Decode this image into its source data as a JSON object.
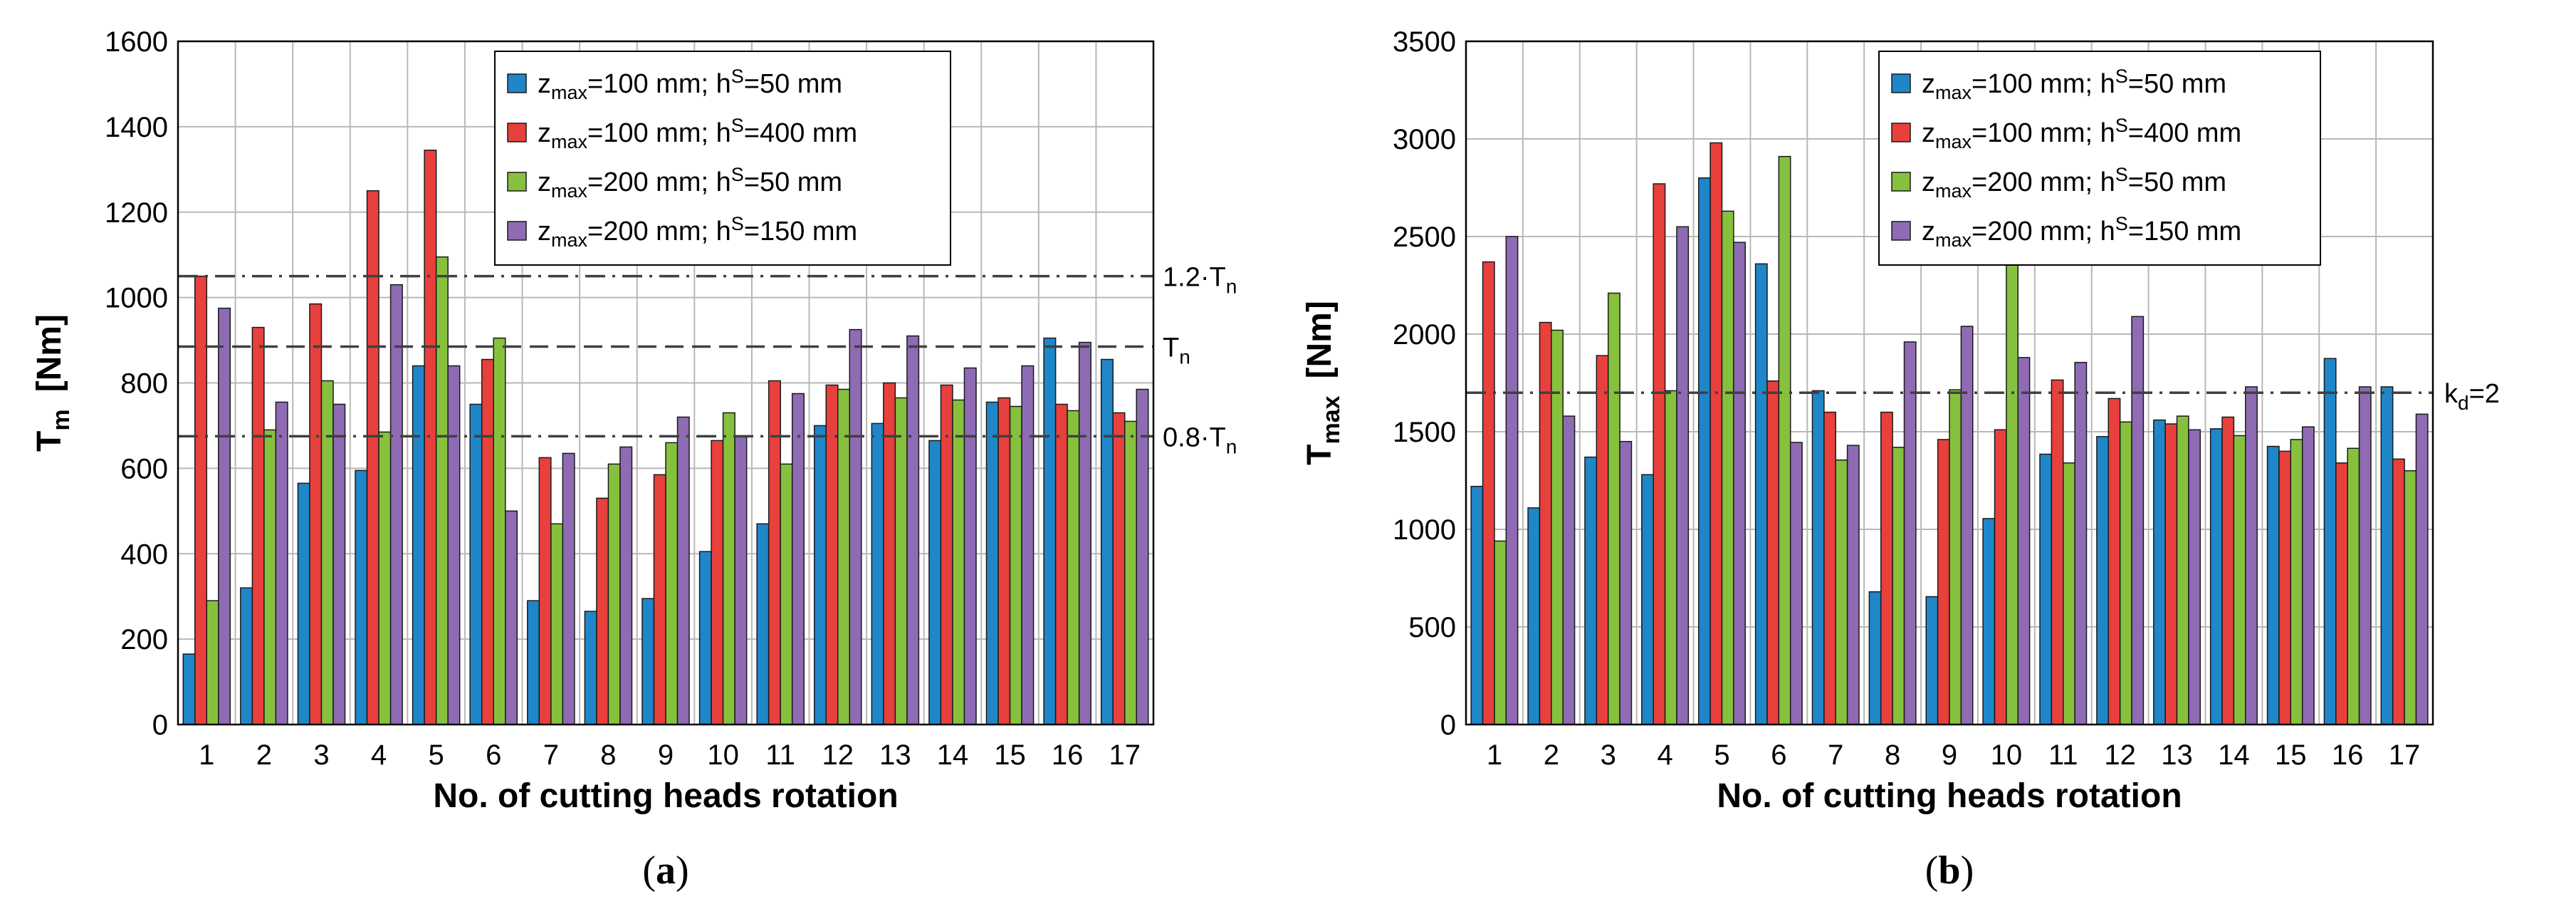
{
  "chart_data": [
    {
      "type": "bar",
      "panel": "a",
      "caption_letter": "a",
      "ylabel_main": "T",
      "ylabel_sub": "m",
      "ylabel_unit": "[Nm]",
      "xlabel": "No. of cutting heads rotation",
      "ylim": [
        0,
        1600
      ],
      "yticks": [
        0,
        200,
        400,
        600,
        800,
        1000,
        1200,
        1400,
        1600
      ],
      "categories": [
        "1",
        "2",
        "3",
        "4",
        "5",
        "6",
        "7",
        "8",
        "9",
        "10",
        "11",
        "12",
        "13",
        "14",
        "15",
        "16",
        "17"
      ],
      "legend_position": "top-right",
      "series": [
        {
          "name": "zmax=100 mm; hS=50 mm",
          "values": [
            165,
            320,
            565,
            595,
            840,
            750,
            290,
            265,
            295,
            405,
            470,
            700,
            705,
            665,
            755,
            905,
            855
          ]
        },
        {
          "name": "zmax=100 mm; hS=400 mm",
          "values": [
            1050,
            930,
            985,
            1250,
            1345,
            855,
            625,
            530,
            585,
            665,
            805,
            795,
            800,
            795,
            765,
            750,
            730
          ]
        },
        {
          "name": "zmax=200 mm; hS=50 mm",
          "values": [
            290,
            690,
            805,
            685,
            1095,
            905,
            470,
            610,
            660,
            730,
            610,
            785,
            765,
            760,
            745,
            735,
            710
          ]
        },
        {
          "name": "zmax=200 mm; hS=150 mm",
          "values": [
            975,
            755,
            750,
            1030,
            840,
            500,
            635,
            650,
            720,
            675,
            775,
            925,
            910,
            835,
            840,
            895,
            785
          ]
        }
      ],
      "reference_lines": [
        {
          "value": 1050,
          "style": "dash-dot",
          "label_main": "1.2·T",
          "label_sub": "n"
        },
        {
          "value": 885,
          "style": "dash",
          "label_main": "T",
          "label_sub": "n"
        },
        {
          "value": 675,
          "style": "dash-dot",
          "label_main": "0.8·T",
          "label_sub": "n"
        }
      ]
    },
    {
      "type": "bar",
      "panel": "b",
      "caption_letter": "b",
      "ylabel_main": "T",
      "ylabel_sub": "max",
      "ylabel_unit": "[Nm]",
      "xlabel": "No. of cutting heads rotation",
      "ylim": [
        0,
        3500
      ],
      "yticks": [
        0,
        500,
        1000,
        1500,
        2000,
        2500,
        3000,
        3500
      ],
      "categories": [
        "1",
        "2",
        "3",
        "4",
        "5",
        "6",
        "7",
        "8",
        "9",
        "10",
        "11",
        "12",
        "13",
        "14",
        "15",
        "16",
        "17"
      ],
      "legend_position": "top-right",
      "series": [
        {
          "name": "zmax=100 mm; hS=50 mm",
          "values": [
            1220,
            1110,
            1370,
            1280,
            2800,
            2360,
            1710,
            680,
            655,
            1055,
            1385,
            1475,
            1560,
            1515,
            1425,
            1875,
            1730
          ]
        },
        {
          "name": "zmax=100 mm; hS=400 mm",
          "values": [
            2370,
            2060,
            1890,
            2770,
            2980,
            1760,
            1600,
            1600,
            1460,
            1510,
            1765,
            1670,
            1540,
            1575,
            1400,
            1340,
            1360
          ]
        },
        {
          "name": "zmax=200 mm; hS=50 mm",
          "values": [
            940,
            2020,
            2210,
            1710,
            2630,
            2910,
            1355,
            1420,
            1715,
            2380,
            1340,
            1550,
            1580,
            1480,
            1460,
            1415,
            1300
          ]
        },
        {
          "name": "zmax=200 mm; hS=150 mm",
          "values": [
            2500,
            1580,
            1450,
            2550,
            2470,
            1445,
            1430,
            1960,
            2040,
            1880,
            1855,
            2090,
            1510,
            1730,
            1525,
            1730,
            1590
          ]
        }
      ],
      "reference_lines": [
        {
          "value": 1700,
          "style": "dash-dot",
          "label_main": "k",
          "label_sub": "d",
          "label_tail": "=2"
        }
      ]
    }
  ],
  "legend_parts": [
    {
      "z": "z",
      "zsub": "max",
      "zval": "=100 mm; h",
      "hsup": "S",
      "hval": "=50 mm"
    },
    {
      "z": "z",
      "zsub": "max",
      "zval": "=100 mm; h",
      "hsup": "S",
      "hval": "=400 mm"
    },
    {
      "z": "z",
      "zsub": "max",
      "zval": "=200 mm; h",
      "hsup": "S",
      "hval": "=50 mm"
    },
    {
      "z": "z",
      "zsub": "max",
      "zval": "=200 mm; h",
      "hsup": "S",
      "hval": "=150 mm"
    }
  ],
  "colors": {
    "series": [
      "#1f86c8",
      "#e8403c",
      "#86c13e",
      "#8e6bb3"
    ],
    "grid": "#b8b8b8",
    "frame": "#000000",
    "ref_line": "#404040"
  }
}
